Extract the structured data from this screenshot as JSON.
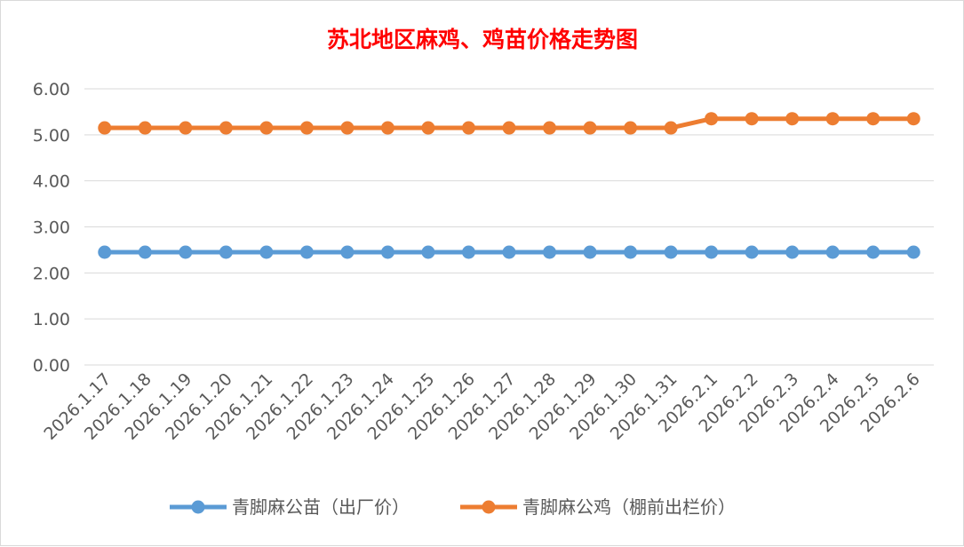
{
  "colors": {
    "series_1": "#5b9bd5",
    "series_2": "#ed7d31",
    "grid": "#d9d9d9",
    "title": "#ff0000"
  },
  "chart_data": {
    "type": "line",
    "title": "苏北地区麻鸡、鸡苗价格走势图",
    "xlabel": "",
    "ylabel": "",
    "ylim": [
      0,
      6
    ],
    "yticks": [
      "0.00",
      "1.00",
      "2.00",
      "3.00",
      "4.00",
      "5.00",
      "6.00"
    ],
    "grid": "horizontal",
    "legend_position": "bottom",
    "categories": [
      "2026.1.17",
      "2026.1.18",
      "2026.1.19",
      "2026.1.20",
      "2026.1.21",
      "2026.1.22",
      "2026.1.23",
      "2026.1.24",
      "2026.1.25",
      "2026.1.26",
      "2026.1.27",
      "2026.1.28",
      "2026.1.29",
      "2026.1.30",
      "2026.1.31",
      "2026.2.1",
      "2026.2.2",
      "2026.2.3",
      "2026.2.4",
      "2026.2.5",
      "2026.2.6"
    ],
    "series": [
      {
        "name": "青脚麻公苗（出厂价）",
        "values": [
          2.45,
          2.45,
          2.45,
          2.45,
          2.45,
          2.45,
          2.45,
          2.45,
          2.45,
          2.45,
          2.45,
          2.45,
          2.45,
          2.45,
          2.45,
          2.45,
          2.45,
          2.45,
          2.45,
          2.45,
          2.45
        ]
      },
      {
        "name": "青脚麻公鸡（棚前出栏价）",
        "values": [
          5.15,
          5.15,
          5.15,
          5.15,
          5.15,
          5.15,
          5.15,
          5.15,
          5.15,
          5.15,
          5.15,
          5.15,
          5.15,
          5.15,
          5.15,
          5.35,
          5.35,
          5.35,
          5.35,
          5.35,
          5.35
        ]
      }
    ]
  }
}
